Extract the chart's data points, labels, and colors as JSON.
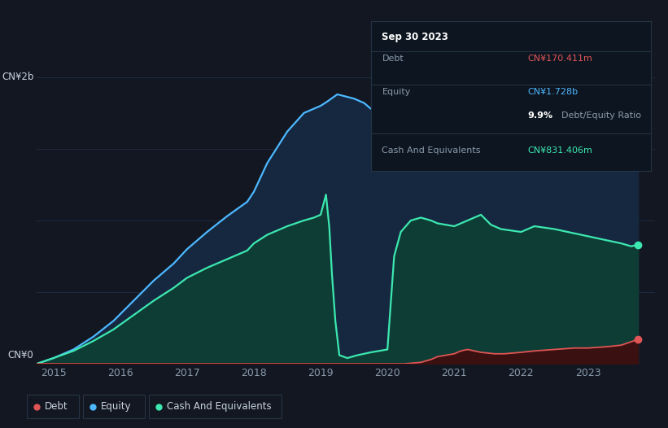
{
  "background_color": "#131722",
  "plot_bg_color": "#131722",
  "ylabel_top": "CN¥2b",
  "ylabel_bottom": "CN¥0",
  "tooltip": {
    "title": "Sep 30 2023",
    "debt_label": "Debt",
    "debt_value": "CN¥170.411m",
    "equity_label": "Equity",
    "equity_value": "CN¥1.728b",
    "ratio_value": "9.9%",
    "ratio_label": "Debt/Equity Ratio",
    "cash_label": "Cash And Equivalents",
    "cash_value": "CN¥831.406m"
  },
  "legend": {
    "debt_label": "Debt",
    "equity_label": "Equity",
    "cash_label": "Cash And Equivalents"
  },
  "colors": {
    "debt": "#e05555",
    "equity": "#4db8ff",
    "cash": "#3de8b0",
    "fill_equity": "#152840",
    "fill_cash": "#0d3d35",
    "grid": "#1e2d40",
    "text": "#8899aa",
    "text_bright": "#c8d4e0",
    "tooltip_bg": "#0d1520",
    "tooltip_border": "#253545"
  },
  "equity_x": [
    2014.75,
    2015.0,
    2015.3,
    2015.6,
    2015.9,
    2016.2,
    2016.5,
    2016.8,
    2017.0,
    2017.3,
    2017.6,
    2017.9,
    2018.0,
    2018.2,
    2018.5,
    2018.75,
    2019.0,
    2019.1,
    2019.25,
    2019.5,
    2019.65,
    2019.75,
    2020.0,
    2020.25,
    2020.5,
    2020.75,
    2021.0,
    2021.2,
    2021.4,
    2021.6,
    2021.8,
    2022.0,
    2022.2,
    2022.5,
    2022.8,
    2023.0,
    2023.3,
    2023.65,
    2023.75
  ],
  "equity_y": [
    0.0,
    0.04,
    0.1,
    0.19,
    0.3,
    0.44,
    0.58,
    0.7,
    0.8,
    0.92,
    1.03,
    1.13,
    1.2,
    1.4,
    1.62,
    1.75,
    1.8,
    1.83,
    1.88,
    1.85,
    1.82,
    1.78,
    1.75,
    1.8,
    1.84,
    1.85,
    1.87,
    1.91,
    1.93,
    1.93,
    1.92,
    1.93,
    1.95,
    1.94,
    1.93,
    1.92,
    1.91,
    1.9,
    1.728
  ],
  "cash_x": [
    2014.75,
    2015.0,
    2015.3,
    2015.6,
    2015.9,
    2016.2,
    2016.5,
    2016.8,
    2017.0,
    2017.3,
    2017.6,
    2017.9,
    2018.0,
    2018.2,
    2018.5,
    2018.75,
    2018.9,
    2019.0,
    2019.08,
    2019.13,
    2019.17,
    2019.22,
    2019.28,
    2019.4,
    2019.55,
    2019.75,
    2020.0,
    2020.1,
    2020.2,
    2020.35,
    2020.5,
    2020.65,
    2020.75,
    2021.0,
    2021.2,
    2021.4,
    2021.55,
    2021.7,
    2021.85,
    2022.0,
    2022.2,
    2022.5,
    2022.8,
    2023.0,
    2023.3,
    2023.5,
    2023.65,
    2023.75
  ],
  "cash_y": [
    0.0,
    0.04,
    0.09,
    0.16,
    0.24,
    0.34,
    0.44,
    0.53,
    0.6,
    0.67,
    0.73,
    0.79,
    0.84,
    0.9,
    0.96,
    1.0,
    1.02,
    1.04,
    1.18,
    0.95,
    0.62,
    0.3,
    0.06,
    0.04,
    0.06,
    0.08,
    0.1,
    0.75,
    0.92,
    1.0,
    1.02,
    1.0,
    0.98,
    0.96,
    1.0,
    1.04,
    0.97,
    0.94,
    0.93,
    0.92,
    0.96,
    0.94,
    0.91,
    0.89,
    0.86,
    0.84,
    0.82,
    0.8314
  ],
  "debt_x": [
    2014.75,
    2015.0,
    2015.5,
    2016.0,
    2016.5,
    2017.0,
    2017.5,
    2018.0,
    2018.5,
    2019.0,
    2019.5,
    2019.75,
    2020.0,
    2020.1,
    2020.25,
    2020.5,
    2020.65,
    2020.75,
    2021.0,
    2021.1,
    2021.2,
    2021.4,
    2021.6,
    2021.75,
    2022.0,
    2022.2,
    2022.5,
    2022.8,
    2023.0,
    2023.3,
    2023.5,
    2023.75
  ],
  "debt_y": [
    0.0,
    0.0,
    0.0,
    0.0,
    0.0,
    0.0,
    0.0,
    0.0,
    0.0,
    0.0,
    0.0,
    0.0,
    0.0,
    0.0,
    0.0,
    0.01,
    0.03,
    0.05,
    0.07,
    0.09,
    0.1,
    0.08,
    0.07,
    0.07,
    0.08,
    0.09,
    0.1,
    0.11,
    0.11,
    0.12,
    0.13,
    0.1704
  ],
  "ylim": [
    0.0,
    2.15
  ],
  "xlim": [
    2014.75,
    2024.0
  ],
  "x_ticks": [
    2015,
    2016,
    2017,
    2018,
    2019,
    2020,
    2021,
    2022,
    2023
  ],
  "grid_yticks": [
    0.0,
    0.5,
    1.0,
    1.5,
    2.0
  ]
}
